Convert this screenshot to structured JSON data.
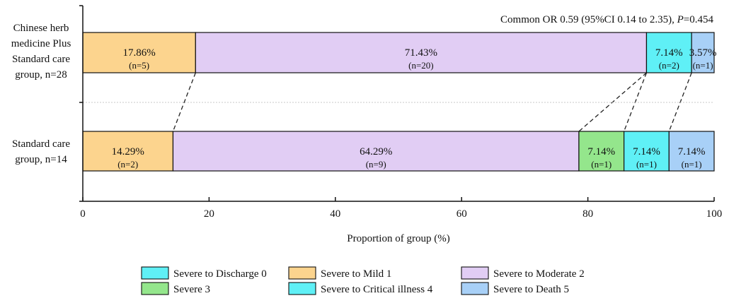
{
  "chart_data": {
    "type": "bar",
    "orientation": "horizontal-stacked-100",
    "annotation": {
      "prefix": "Common OR 0.59 (95%CI 0.14 to 2.35), ",
      "p_label": "P",
      "p_value": "=0.454"
    },
    "xlabel": "Proportion of group (%)",
    "xlim": [
      0,
      100
    ],
    "xticks": [
      0,
      20,
      40,
      60,
      80,
      100
    ],
    "categories": [
      "Chinese herb medicine Plus Standard care group, n=28",
      "Standard care group, n=14"
    ],
    "group_label_lines": [
      [
        "Chinese herb",
        "medicine Plus",
        "Standard care",
        "group, n=28"
      ],
      [
        "Standard care",
        "group, n=14"
      ]
    ],
    "groups": [
      {
        "name": "Chinese herb medicine Plus Standard care group, n=28",
        "segments": [
          {
            "category": "Severe to Mild 1",
            "value": 17.86,
            "pct": "17.86%",
            "n": "(n=5)"
          },
          {
            "category": "Severe to Moderate 2",
            "value": 71.43,
            "pct": "71.43%",
            "n": "(n=20)"
          },
          {
            "category": "Severe to Critical illness 4",
            "value": 7.14,
            "pct": "7.14%",
            "n": "(n=2)"
          },
          {
            "category": "Severe to Death 5",
            "value": 3.57,
            "pct": "3.57%",
            "n": "(n=1)"
          }
        ]
      },
      {
        "name": "Standard care group, n=14",
        "segments": [
          {
            "category": "Severe to Mild 1",
            "value": 14.29,
            "pct": "14.29%",
            "n": "(n=2)"
          },
          {
            "category": "Severe to Moderate 2",
            "value": 64.29,
            "pct": "64.29%",
            "n": "(n=9)"
          },
          {
            "category": "Severe 3",
            "value": 7.14,
            "pct": "7.14%",
            "n": "(n=1)"
          },
          {
            "category": "Severe to Critical illness 4",
            "value": 7.14,
            "pct": "7.14%",
            "n": "(n=1)"
          },
          {
            "category": "Severe to Death 5",
            "value": 7.14,
            "pct": "7.14%",
            "n": "(n=1)"
          }
        ]
      }
    ],
    "legend": [
      {
        "label": "Severe to Discharge 0",
        "color": "#5ff0f6"
      },
      {
        "label": "Severe to Mild 1",
        "color": "#fcd48e"
      },
      {
        "label": "Severe to Moderate 2",
        "color": "#e1cdf4"
      },
      {
        "label": "Severe 3",
        "color": "#94e68c"
      },
      {
        "label": "Severe to Critical illness 4",
        "color": "#5ff0f6"
      },
      {
        "label": "Severe to Death 5",
        "color": "#a8d0f7"
      }
    ],
    "legend_placement": "bottom-center",
    "grid": false
  }
}
